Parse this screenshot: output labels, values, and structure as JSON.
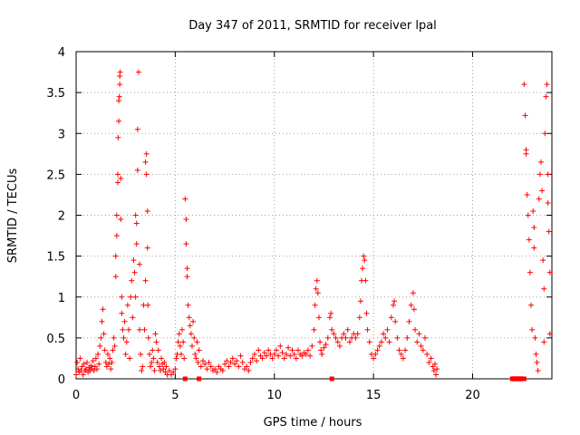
{
  "chart_data": {
    "type": "scatter",
    "title": "Day 347 of 2011, SRMTID for receiver lpal",
    "xlabel": "GPS time / hours",
    "ylabel": "SRMTID / TECUs",
    "xlim": [
      0,
      24
    ],
    "ylim": [
      0,
      4
    ],
    "xticks": [
      0,
      5,
      10,
      15,
      20
    ],
    "yticks": [
      0,
      0.5,
      1,
      1.5,
      2,
      2.5,
      3,
      3.5,
      4
    ],
    "xtick_labels": [
      "0",
      "5",
      "10",
      "15",
      "20"
    ],
    "ytick_labels": [
      "0",
      "0.5",
      "1",
      "1.5",
      "2",
      "2.5",
      "3",
      "3.5",
      "4"
    ],
    "grid": true,
    "marker": "+",
    "color": "#ff0000",
    "series": [
      {
        "name": "SRMTID",
        "points": [
          [
            0.0,
            0.05
          ],
          [
            0.05,
            0.2
          ],
          [
            0.1,
            0.12
          ],
          [
            0.15,
            0.08
          ],
          [
            0.2,
            0.25
          ],
          [
            0.25,
            0.1
          ],
          [
            0.3,
            0.15
          ],
          [
            0.35,
            0.05
          ],
          [
            0.4,
            0.18
          ],
          [
            0.45,
            0.1
          ],
          [
            0.5,
            0.12
          ],
          [
            0.55,
            0.2
          ],
          [
            0.6,
            0.08
          ],
          [
            0.65,
            0.14
          ],
          [
            0.7,
            0.1
          ],
          [
            0.75,
            0.16
          ],
          [
            0.8,
            0.12
          ],
          [
            0.85,
            0.22
          ],
          [
            0.9,
            0.1
          ],
          [
            0.95,
            0.15
          ],
          [
            1.0,
            0.25
          ],
          [
            1.05,
            0.12
          ],
          [
            1.1,
            0.3
          ],
          [
            1.15,
            0.18
          ],
          [
            1.2,
            0.4
          ],
          [
            1.25,
            0.5
          ],
          [
            1.3,
            0.7
          ],
          [
            1.35,
            0.85
          ],
          [
            1.4,
            0.55
          ],
          [
            1.45,
            0.35
          ],
          [
            1.5,
            0.2
          ],
          [
            1.55,
            0.15
          ],
          [
            1.6,
            0.3
          ],
          [
            1.65,
            0.18
          ],
          [
            1.7,
            0.25
          ],
          [
            1.75,
            0.12
          ],
          [
            1.8,
            0.2
          ],
          [
            1.85,
            0.35
          ],
          [
            1.9,
            0.5
          ],
          [
            1.95,
            0.4
          ],
          [
            2.0,
            1.25
          ],
          [
            2.0,
            1.5
          ],
          [
            2.05,
            1.75
          ],
          [
            2.05,
            2.0
          ],
          [
            2.1,
            2.4
          ],
          [
            2.1,
            2.5
          ],
          [
            2.12,
            2.95
          ],
          [
            2.15,
            3.15
          ],
          [
            2.15,
            3.4
          ],
          [
            2.18,
            3.45
          ],
          [
            2.2,
            3.6
          ],
          [
            2.2,
            3.7
          ],
          [
            2.22,
            3.75
          ],
          [
            2.25,
            2.45
          ],
          [
            2.25,
            1.95
          ],
          [
            2.3,
            1.0
          ],
          [
            2.3,
            0.8
          ],
          [
            2.35,
            0.6
          ],
          [
            2.4,
            0.5
          ],
          [
            2.45,
            0.7
          ],
          [
            2.5,
            0.3
          ],
          [
            2.55,
            0.45
          ],
          [
            2.6,
            0.9
          ],
          [
            2.65,
            0.6
          ],
          [
            2.7,
            0.25
          ],
          [
            2.75,
            1.0
          ],
          [
            2.8,
            1.2
          ],
          [
            2.85,
            0.75
          ],
          [
            2.9,
            1.45
          ],
          [
            2.95,
            1.3
          ],
          [
            3.0,
            1.0
          ],
          [
            3.0,
            2.0
          ],
          [
            3.05,
            1.65
          ],
          [
            3.05,
            1.9
          ],
          [
            3.1,
            2.55
          ],
          [
            3.1,
            3.05
          ],
          [
            3.15,
            3.75
          ],
          [
            3.2,
            1.4
          ],
          [
            3.2,
            0.6
          ],
          [
            3.25,
            0.3
          ],
          [
            3.3,
            0.1
          ],
          [
            3.35,
            0.15
          ],
          [
            3.4,
            0.9
          ],
          [
            3.45,
            0.6
          ],
          [
            3.5,
            1.2
          ],
          [
            3.5,
            2.65
          ],
          [
            3.55,
            2.75
          ],
          [
            3.55,
            2.5
          ],
          [
            3.6,
            2.05
          ],
          [
            3.6,
            1.6
          ],
          [
            3.62,
            0.9
          ],
          [
            3.65,
            0.5
          ],
          [
            3.7,
            0.3
          ],
          [
            3.75,
            0.15
          ],
          [
            3.8,
            0.2
          ],
          [
            3.85,
            0.35
          ],
          [
            3.9,
            0.25
          ],
          [
            3.95,
            0.1
          ],
          [
            4.0,
            0.55
          ],
          [
            4.05,
            0.45
          ],
          [
            4.1,
            0.2
          ],
          [
            4.15,
            0.35
          ],
          [
            4.2,
            0.15
          ],
          [
            4.25,
            0.1
          ],
          [
            4.3,
            0.25
          ],
          [
            4.35,
            0.18
          ],
          [
            4.4,
            0.12
          ],
          [
            4.45,
            0.2
          ],
          [
            4.5,
            0.08
          ],
          [
            4.55,
            0.15
          ],
          [
            4.6,
            0.05
          ],
          [
            4.7,
            0.1
          ],
          [
            4.8,
            0.05
          ],
          [
            4.9,
            0.08
          ],
          [
            5.0,
            0.12
          ],
          [
            5.05,
            0.25
          ],
          [
            5.1,
            0.3
          ],
          [
            5.15,
            0.45
          ],
          [
            5.2,
            0.55
          ],
          [
            5.25,
            0.4
          ],
          [
            5.3,
            0.3
          ],
          [
            5.35,
            0.6
          ],
          [
            5.4,
            0.45
          ],
          [
            5.45,
            0.25
          ],
          [
            5.5,
            2.2
          ],
          [
            5.55,
            1.95
          ],
          [
            5.55,
            1.65
          ],
          [
            5.6,
            1.35
          ],
          [
            5.6,
            1.25
          ],
          [
            5.65,
            0.9
          ],
          [
            5.7,
            0.75
          ],
          [
            5.75,
            0.65
          ],
          [
            5.8,
            0.55
          ],
          [
            5.85,
            0.4
          ],
          [
            5.9,
            0.7
          ],
          [
            5.95,
            0.5
          ],
          [
            6.0,
            0.3
          ],
          [
            6.05,
            0.25
          ],
          [
            6.1,
            0.45
          ],
          [
            6.15,
            0.2
          ],
          [
            6.2,
            0.35
          ],
          [
            6.3,
            0.15
          ],
          [
            6.4,
            0.22
          ],
          [
            6.5,
            0.18
          ],
          [
            6.6,
            0.12
          ],
          [
            6.7,
            0.2
          ],
          [
            6.8,
            0.15
          ],
          [
            6.9,
            0.1
          ],
          [
            7.0,
            0.12
          ],
          [
            7.1,
            0.08
          ],
          [
            7.2,
            0.15
          ],
          [
            7.3,
            0.12
          ],
          [
            7.4,
            0.1
          ],
          [
            7.5,
            0.18
          ],
          [
            7.6,
            0.22
          ],
          [
            7.7,
            0.15
          ],
          [
            7.8,
            0.2
          ],
          [
            7.9,
            0.25
          ],
          [
            8.0,
            0.18
          ],
          [
            8.1,
            0.22
          ],
          [
            8.2,
            0.15
          ],
          [
            8.3,
            0.28
          ],
          [
            8.4,
            0.2
          ],
          [
            8.5,
            0.12
          ],
          [
            8.6,
            0.15
          ],
          [
            8.7,
            0.1
          ],
          [
            8.8,
            0.2
          ],
          [
            8.9,
            0.25
          ],
          [
            9.0,
            0.3
          ],
          [
            9.1,
            0.22
          ],
          [
            9.2,
            0.35
          ],
          [
            9.3,
            0.28
          ],
          [
            9.4,
            0.25
          ],
          [
            9.5,
            0.32
          ],
          [
            9.6,
            0.28
          ],
          [
            9.7,
            0.35
          ],
          [
            9.8,
            0.3
          ],
          [
            9.9,
            0.25
          ],
          [
            10.0,
            0.3
          ],
          [
            10.1,
            0.35
          ],
          [
            10.2,
            0.28
          ],
          [
            10.3,
            0.4
          ],
          [
            10.4,
            0.32
          ],
          [
            10.5,
            0.25
          ],
          [
            10.6,
            0.3
          ],
          [
            10.7,
            0.38
          ],
          [
            10.8,
            0.28
          ],
          [
            10.9,
            0.35
          ],
          [
            11.0,
            0.3
          ],
          [
            11.1,
            0.25
          ],
          [
            11.2,
            0.35
          ],
          [
            11.3,
            0.3
          ],
          [
            11.4,
            0.28
          ],
          [
            11.5,
            0.32
          ],
          [
            11.6,
            0.3
          ],
          [
            11.7,
            0.35
          ],
          [
            11.8,
            0.28
          ],
          [
            11.9,
            0.4
          ],
          [
            12.0,
            0.6
          ],
          [
            12.05,
            0.9
          ],
          [
            12.1,
            1.1
          ],
          [
            12.15,
            1.2
          ],
          [
            12.2,
            1.05
          ],
          [
            12.25,
            0.75
          ],
          [
            12.3,
            0.45
          ],
          [
            12.35,
            0.35
          ],
          [
            12.4,
            0.3
          ],
          [
            12.5,
            0.38
          ],
          [
            12.6,
            0.42
          ],
          [
            12.7,
            0.5
          ],
          [
            12.8,
            0.75
          ],
          [
            12.85,
            0.8
          ],
          [
            12.9,
            0.6
          ],
          [
            13.0,
            0.55
          ],
          [
            13.1,
            0.5
          ],
          [
            13.2,
            0.45
          ],
          [
            13.3,
            0.4
          ],
          [
            13.4,
            0.5
          ],
          [
            13.5,
            0.55
          ],
          [
            13.6,
            0.5
          ],
          [
            13.7,
            0.6
          ],
          [
            13.8,
            0.45
          ],
          [
            13.9,
            0.5
          ],
          [
            14.0,
            0.55
          ],
          [
            14.1,
            0.5
          ],
          [
            14.2,
            0.55
          ],
          [
            14.3,
            0.75
          ],
          [
            14.35,
            0.95
          ],
          [
            14.4,
            1.2
          ],
          [
            14.45,
            1.35
          ],
          [
            14.5,
            1.5
          ],
          [
            14.55,
            1.45
          ],
          [
            14.6,
            1.2
          ],
          [
            14.65,
            0.8
          ],
          [
            14.7,
            0.6
          ],
          [
            14.8,
            0.45
          ],
          [
            14.9,
            0.3
          ],
          [
            15.0,
            0.25
          ],
          [
            15.1,
            0.3
          ],
          [
            15.2,
            0.35
          ],
          [
            15.3,
            0.4
          ],
          [
            15.4,
            0.45
          ],
          [
            15.5,
            0.55
          ],
          [
            15.6,
            0.5
          ],
          [
            15.7,
            0.6
          ],
          [
            15.8,
            0.45
          ],
          [
            15.9,
            0.75
          ],
          [
            16.0,
            0.9
          ],
          [
            16.05,
            0.95
          ],
          [
            16.1,
            0.7
          ],
          [
            16.2,
            0.5
          ],
          [
            16.3,
            0.35
          ],
          [
            16.4,
            0.3
          ],
          [
            16.5,
            0.25
          ],
          [
            16.6,
            0.35
          ],
          [
            16.7,
            0.5
          ],
          [
            16.8,
            0.7
          ],
          [
            16.9,
            0.9
          ],
          [
            17.0,
            1.05
          ],
          [
            17.05,
            0.85
          ],
          [
            17.1,
            0.6
          ],
          [
            17.2,
            0.45
          ],
          [
            17.3,
            0.55
          ],
          [
            17.4,
            0.4
          ],
          [
            17.5,
            0.35
          ],
          [
            17.6,
            0.5
          ],
          [
            17.7,
            0.3
          ],
          [
            17.8,
            0.2
          ],
          [
            17.9,
            0.25
          ],
          [
            18.0,
            0.15
          ],
          [
            18.05,
            0.1
          ],
          [
            18.1,
            0.18
          ],
          [
            18.15,
            0.05
          ],
          [
            18.2,
            0.12
          ],
          [
            22.0,
            0.0
          ],
          [
            22.1,
            0.0
          ],
          [
            22.2,
            0.0
          ],
          [
            22.3,
            0.0
          ],
          [
            22.4,
            0.0
          ],
          [
            22.5,
            0.0
          ],
          [
            22.6,
            3.6
          ],
          [
            22.65,
            3.22
          ],
          [
            22.7,
            2.8
          ],
          [
            22.7,
            2.75
          ],
          [
            22.75,
            2.25
          ],
          [
            22.8,
            2.0
          ],
          [
            22.85,
            1.7
          ],
          [
            22.9,
            1.3
          ],
          [
            22.95,
            0.9
          ],
          [
            23.0,
            0.6
          ],
          [
            23.05,
            2.05
          ],
          [
            23.1,
            1.85
          ],
          [
            23.1,
            1.6
          ],
          [
            23.15,
            0.5
          ],
          [
            23.2,
            0.3
          ],
          [
            23.25,
            0.2
          ],
          [
            23.3,
            0.1
          ],
          [
            23.35,
            2.2
          ],
          [
            23.4,
            2.5
          ],
          [
            23.45,
            2.65
          ],
          [
            23.5,
            2.3
          ],
          [
            23.55,
            1.45
          ],
          [
            23.6,
            1.1
          ],
          [
            23.6,
            0.45
          ],
          [
            23.65,
            3.0
          ],
          [
            23.7,
            3.45
          ],
          [
            23.75,
            3.6
          ],
          [
            23.8,
            2.5
          ],
          [
            23.8,
            2.15
          ],
          [
            23.85,
            1.8
          ],
          [
            23.9,
            1.3
          ],
          [
            23.9,
            0.55
          ]
        ]
      },
      {
        "name": "zero-level markers",
        "marker": "square",
        "points": [
          [
            5.5,
            0.0
          ],
          [
            6.2,
            0.0
          ],
          [
            12.9,
            0.0
          ],
          [
            22.0,
            0.0
          ],
          [
            22.2,
            0.0
          ],
          [
            22.4,
            0.0
          ],
          [
            22.6,
            0.0
          ]
        ]
      }
    ]
  }
}
